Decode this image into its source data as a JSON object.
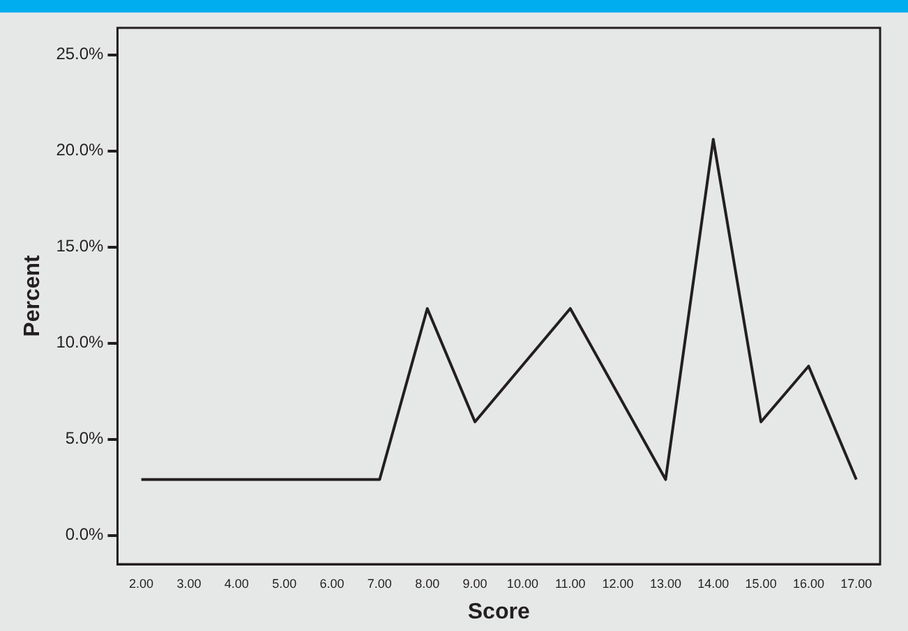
{
  "chart_data": {
    "type": "line",
    "xlabel": "Score",
    "ylabel": "Percent",
    "categories": [
      "2.00",
      "3.00",
      "4.00",
      "5.00",
      "6.00",
      "7.00",
      "8.00",
      "9.00",
      "10.00",
      "11.00",
      "12.00",
      "13.00",
      "14.00",
      "15.00",
      "16.00",
      "17.00"
    ],
    "series": [
      {
        "color": "#231f20",
        "values": [
          2.9,
          2.9,
          2.9,
          2.9,
          2.9,
          2.9,
          11.8,
          5.9,
          null,
          11.8,
          null,
          2.9,
          20.6,
          5.9,
          8.8,
          2.9
        ]
      }
    ],
    "ylim": [
      -1.5,
      26.4
    ],
    "yticks": [
      {
        "value": 0,
        "label": "0.0%"
      },
      {
        "value": 5,
        "label": "5.0%"
      },
      {
        "value": 10,
        "label": "10.0%"
      },
      {
        "value": 15,
        "label": "15.0%"
      },
      {
        "value": 20,
        "label": "20.0%"
      },
      {
        "value": 25,
        "label": "25.0%"
      }
    ],
    "grid": false,
    "legend": false,
    "marker": "none",
    "line_style": "solid"
  }
}
